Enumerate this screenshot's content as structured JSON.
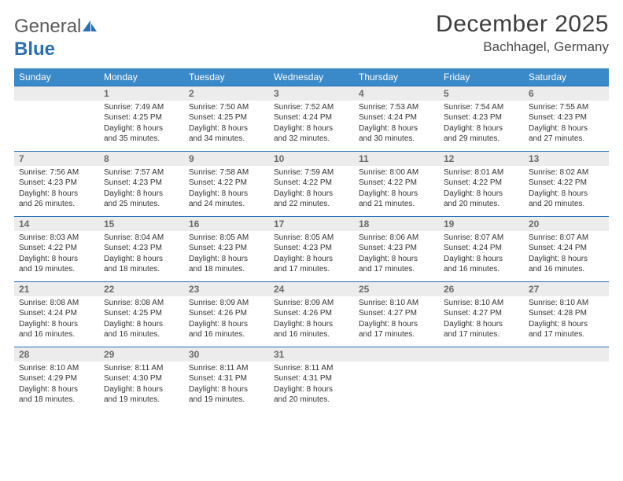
{
  "logo": {
    "part1": "General",
    "part2": "Blue"
  },
  "title": "December 2025",
  "location": "Bachhagel, Germany",
  "colors": {
    "header_bg": "#3a89c9",
    "header_text": "#ffffff",
    "daynum_bg": "#ececec",
    "daynum_text": "#6a6a6a",
    "rule": "#2a6fb5",
    "body_text": "#333333",
    "page_bg": "#ffffff",
    "logo_gray": "#5a5a5a",
    "logo_blue": "#2a6fb5"
  },
  "typography": {
    "title_fontsize": 30,
    "location_fontsize": 17,
    "dow_fontsize": 12,
    "daynum_fontsize": 12,
    "cell_fontsize": 10,
    "logo_fontsize": 24
  },
  "days_of_week": [
    "Sunday",
    "Monday",
    "Tuesday",
    "Wednesday",
    "Thursday",
    "Friday",
    "Saturday"
  ],
  "weeks": [
    {
      "nums": [
        "",
        "1",
        "2",
        "3",
        "4",
        "5",
        "6"
      ],
      "cells": [
        {
          "sunrise": "",
          "sunset": "",
          "daylight1": "",
          "daylight2": ""
        },
        {
          "sunrise": "Sunrise: 7:49 AM",
          "sunset": "Sunset: 4:25 PM",
          "daylight1": "Daylight: 8 hours",
          "daylight2": "and 35 minutes."
        },
        {
          "sunrise": "Sunrise: 7:50 AM",
          "sunset": "Sunset: 4:25 PM",
          "daylight1": "Daylight: 8 hours",
          "daylight2": "and 34 minutes."
        },
        {
          "sunrise": "Sunrise: 7:52 AM",
          "sunset": "Sunset: 4:24 PM",
          "daylight1": "Daylight: 8 hours",
          "daylight2": "and 32 minutes."
        },
        {
          "sunrise": "Sunrise: 7:53 AM",
          "sunset": "Sunset: 4:24 PM",
          "daylight1": "Daylight: 8 hours",
          "daylight2": "and 30 minutes."
        },
        {
          "sunrise": "Sunrise: 7:54 AM",
          "sunset": "Sunset: 4:23 PM",
          "daylight1": "Daylight: 8 hours",
          "daylight2": "and 29 minutes."
        },
        {
          "sunrise": "Sunrise: 7:55 AM",
          "sunset": "Sunset: 4:23 PM",
          "daylight1": "Daylight: 8 hours",
          "daylight2": "and 27 minutes."
        }
      ]
    },
    {
      "nums": [
        "7",
        "8",
        "9",
        "10",
        "11",
        "12",
        "13"
      ],
      "cells": [
        {
          "sunrise": "Sunrise: 7:56 AM",
          "sunset": "Sunset: 4:23 PM",
          "daylight1": "Daylight: 8 hours",
          "daylight2": "and 26 minutes."
        },
        {
          "sunrise": "Sunrise: 7:57 AM",
          "sunset": "Sunset: 4:23 PM",
          "daylight1": "Daylight: 8 hours",
          "daylight2": "and 25 minutes."
        },
        {
          "sunrise": "Sunrise: 7:58 AM",
          "sunset": "Sunset: 4:22 PM",
          "daylight1": "Daylight: 8 hours",
          "daylight2": "and 24 minutes."
        },
        {
          "sunrise": "Sunrise: 7:59 AM",
          "sunset": "Sunset: 4:22 PM",
          "daylight1": "Daylight: 8 hours",
          "daylight2": "and 22 minutes."
        },
        {
          "sunrise": "Sunrise: 8:00 AM",
          "sunset": "Sunset: 4:22 PM",
          "daylight1": "Daylight: 8 hours",
          "daylight2": "and 21 minutes."
        },
        {
          "sunrise": "Sunrise: 8:01 AM",
          "sunset": "Sunset: 4:22 PM",
          "daylight1": "Daylight: 8 hours",
          "daylight2": "and 20 minutes."
        },
        {
          "sunrise": "Sunrise: 8:02 AM",
          "sunset": "Sunset: 4:22 PM",
          "daylight1": "Daylight: 8 hours",
          "daylight2": "and 20 minutes."
        }
      ]
    },
    {
      "nums": [
        "14",
        "15",
        "16",
        "17",
        "18",
        "19",
        "20"
      ],
      "cells": [
        {
          "sunrise": "Sunrise: 8:03 AM",
          "sunset": "Sunset: 4:22 PM",
          "daylight1": "Daylight: 8 hours",
          "daylight2": "and 19 minutes."
        },
        {
          "sunrise": "Sunrise: 8:04 AM",
          "sunset": "Sunset: 4:23 PM",
          "daylight1": "Daylight: 8 hours",
          "daylight2": "and 18 minutes."
        },
        {
          "sunrise": "Sunrise: 8:05 AM",
          "sunset": "Sunset: 4:23 PM",
          "daylight1": "Daylight: 8 hours",
          "daylight2": "and 18 minutes."
        },
        {
          "sunrise": "Sunrise: 8:05 AM",
          "sunset": "Sunset: 4:23 PM",
          "daylight1": "Daylight: 8 hours",
          "daylight2": "and 17 minutes."
        },
        {
          "sunrise": "Sunrise: 8:06 AM",
          "sunset": "Sunset: 4:23 PM",
          "daylight1": "Daylight: 8 hours",
          "daylight2": "and 17 minutes."
        },
        {
          "sunrise": "Sunrise: 8:07 AM",
          "sunset": "Sunset: 4:24 PM",
          "daylight1": "Daylight: 8 hours",
          "daylight2": "and 16 minutes."
        },
        {
          "sunrise": "Sunrise: 8:07 AM",
          "sunset": "Sunset: 4:24 PM",
          "daylight1": "Daylight: 8 hours",
          "daylight2": "and 16 minutes."
        }
      ]
    },
    {
      "nums": [
        "21",
        "22",
        "23",
        "24",
        "25",
        "26",
        "27"
      ],
      "cells": [
        {
          "sunrise": "Sunrise: 8:08 AM",
          "sunset": "Sunset: 4:24 PM",
          "daylight1": "Daylight: 8 hours",
          "daylight2": "and 16 minutes."
        },
        {
          "sunrise": "Sunrise: 8:08 AM",
          "sunset": "Sunset: 4:25 PM",
          "daylight1": "Daylight: 8 hours",
          "daylight2": "and 16 minutes."
        },
        {
          "sunrise": "Sunrise: 8:09 AM",
          "sunset": "Sunset: 4:26 PM",
          "daylight1": "Daylight: 8 hours",
          "daylight2": "and 16 minutes."
        },
        {
          "sunrise": "Sunrise: 8:09 AM",
          "sunset": "Sunset: 4:26 PM",
          "daylight1": "Daylight: 8 hours",
          "daylight2": "and 16 minutes."
        },
        {
          "sunrise": "Sunrise: 8:10 AM",
          "sunset": "Sunset: 4:27 PM",
          "daylight1": "Daylight: 8 hours",
          "daylight2": "and 17 minutes."
        },
        {
          "sunrise": "Sunrise: 8:10 AM",
          "sunset": "Sunset: 4:27 PM",
          "daylight1": "Daylight: 8 hours",
          "daylight2": "and 17 minutes."
        },
        {
          "sunrise": "Sunrise: 8:10 AM",
          "sunset": "Sunset: 4:28 PM",
          "daylight1": "Daylight: 8 hours",
          "daylight2": "and 17 minutes."
        }
      ]
    },
    {
      "nums": [
        "28",
        "29",
        "30",
        "31",
        "",
        "",
        ""
      ],
      "cells": [
        {
          "sunrise": "Sunrise: 8:10 AM",
          "sunset": "Sunset: 4:29 PM",
          "daylight1": "Daylight: 8 hours",
          "daylight2": "and 18 minutes."
        },
        {
          "sunrise": "Sunrise: 8:11 AM",
          "sunset": "Sunset: 4:30 PM",
          "daylight1": "Daylight: 8 hours",
          "daylight2": "and 19 minutes."
        },
        {
          "sunrise": "Sunrise: 8:11 AM",
          "sunset": "Sunset: 4:31 PM",
          "daylight1": "Daylight: 8 hours",
          "daylight2": "and 19 minutes."
        },
        {
          "sunrise": "Sunrise: 8:11 AM",
          "sunset": "Sunset: 4:31 PM",
          "daylight1": "Daylight: 8 hours",
          "daylight2": "and 20 minutes."
        },
        {
          "sunrise": "",
          "sunset": "",
          "daylight1": "",
          "daylight2": ""
        },
        {
          "sunrise": "",
          "sunset": "",
          "daylight1": "",
          "daylight2": ""
        },
        {
          "sunrise": "",
          "sunset": "",
          "daylight1": "",
          "daylight2": ""
        }
      ]
    }
  ]
}
